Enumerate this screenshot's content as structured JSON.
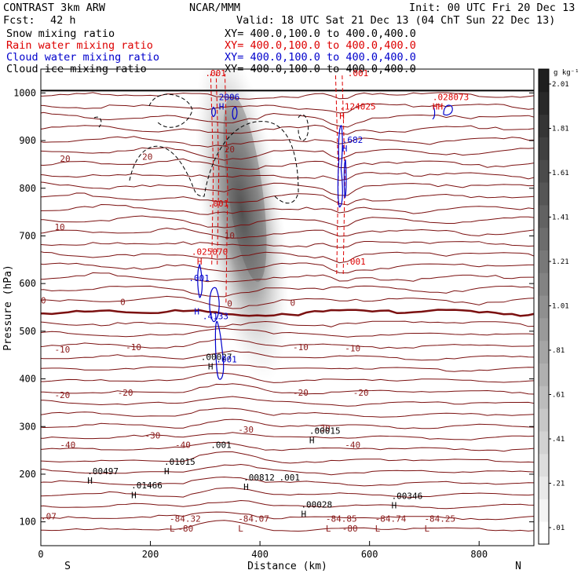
{
  "header": {
    "model": "CONTRAST  3km ARW",
    "org": "NCAR/MMM",
    "init": "Init: 00 UTC Fri 20 Dec 13",
    "fcst_label": "Fcst:",
    "fcst_value": "42 h",
    "valid": "Valid: 18 UTC Sat 21 Dec 13 (04 ChT Sun 22 Dec 13)"
  },
  "fields": [
    {
      "name": "Snow mixing ratio",
      "xy": "XY= 400.0,100.0 to 400.0,400.0",
      "color": "#000000"
    },
    {
      "name": "Rain water mixing ratio",
      "xy": "XY= 400.0,100.0 to 400.0,400.0",
      "color": "#dd0000"
    },
    {
      "name": "Cloud water mixing ratio",
      "xy": "XY= 400.0,100.0 to 400.0,400.0",
      "color": "#0000cc"
    },
    {
      "name": "Cloud ice mixing ratio",
      "xy": "XY= 400.0,100.0 to 400.0,400.0",
      "color": "#000000"
    }
  ],
  "chart_data": {
    "type": "cross-section",
    "xlabel": "Distance (km)",
    "ylabel": "Pressure (hPa)",
    "xlim": [
      0,
      900
    ],
    "ylim": [
      1050,
      50
    ],
    "x_ticks": [
      0,
      200,
      400,
      600,
      800
    ],
    "y_ticks": [
      100,
      200,
      300,
      400,
      500,
      600,
      700,
      800,
      900,
      1000
    ],
    "x_end_labels": {
      "left": "S",
      "right": "N"
    },
    "colorbar": {
      "unit": "g kg⁻¹",
      "ticks": [
        ".01",
        ".21",
        ".41",
        ".61",
        ".81",
        "1.01",
        "1.21",
        "1.41",
        "1.61",
        "1.81",
        "2.01"
      ]
    },
    "temperature_labels": [
      {
        "x": 35,
        "p": 255,
        "text": "-40"
      },
      {
        "x": 555,
        "p": 255,
        "text": "-40"
      },
      {
        "x": 245,
        "p": 255,
        "text": "-40"
      },
      {
        "x": 190,
        "p": 275,
        "text": "-30"
      },
      {
        "x": 500,
        "p": 290,
        "text": "-30"
      },
      {
        "x": 360,
        "p": 287,
        "text": "-30"
      },
      {
        "x": 25,
        "p": 360,
        "text": "-20"
      },
      {
        "x": 140,
        "p": 365,
        "text": "-20"
      },
      {
        "x": 460,
        "p": 365,
        "text": "-20"
      },
      {
        "x": 570,
        "p": 365,
        "text": "-20"
      },
      {
        "x": 25,
        "p": 455,
        "text": "-10"
      },
      {
        "x": 155,
        "p": 460,
        "text": "-10"
      },
      {
        "x": 460,
        "p": 460,
        "text": "-10"
      },
      {
        "x": 555,
        "p": 458,
        "text": "-10"
      },
      {
        "x": 0,
        "p": 558,
        "text": "0"
      },
      {
        "x": 145,
        "p": 555,
        "text": "0"
      },
      {
        "x": 340,
        "p": 552,
        "text": "0"
      },
      {
        "x": 455,
        "p": 553,
        "text": "0"
      },
      {
        "x": 25,
        "p": 712,
        "text": "10"
      },
      {
        "x": 335,
        "p": 694,
        "text": "10"
      },
      {
        "x": 35,
        "p": 856,
        "text": "20"
      },
      {
        "x": 185,
        "p": 860,
        "text": "20"
      },
      {
        "x": 335,
        "p": 875,
        "text": "20"
      },
      {
        "x": 250,
        "p": 80,
        "text": "-80"
      },
      {
        "x": 550,
        "p": 80,
        "text": "-80"
      }
    ],
    "extrema_labels": [
      {
        "x": 235,
        "p": 80,
        "text": "L",
        "color": "#8b1a1a"
      },
      {
        "x": 235,
        "p": 100,
        "text": "-84.32",
        "color": "#8b1a1a"
      },
      {
        "x": 0,
        "p": 105,
        "text": ".07",
        "color": "#8b1a1a"
      },
      {
        "x": 360,
        "p": 80,
        "text": "L",
        "color": "#8b1a1a"
      },
      {
        "x": 360,
        "p": 100,
        "text": "-84.07",
        "color": "#8b1a1a"
      },
      {
        "x": 520,
        "p": 80,
        "text": "L",
        "color": "#8b1a1a"
      },
      {
        "x": 520,
        "p": 100,
        "text": "-84.85",
        "color": "#8b1a1a"
      },
      {
        "x": 610,
        "p": 80,
        "text": "L",
        "color": "#8b1a1a"
      },
      {
        "x": 610,
        "p": 100,
        "text": "-84.74",
        "color": "#8b1a1a"
      },
      {
        "x": 700,
        "p": 80,
        "text": "L",
        "color": "#8b1a1a"
      },
      {
        "x": 700,
        "p": 100,
        "text": "-84.25",
        "color": "#8b1a1a"
      },
      {
        "x": 475,
        "p": 110,
        "text": "H",
        "color": "#000000"
      },
      {
        "x": 475,
        "p": 130,
        "text": ".00028",
        "color": "#000000"
      },
      {
        "x": 165,
        "p": 150,
        "text": "H",
        "color": "#000000"
      },
      {
        "x": 165,
        "p": 170,
        "text": ".01466",
        "color": "#000000"
      },
      {
        "x": 370,
        "p": 167,
        "text": "H",
        "color": "#000000"
      },
      {
        "x": 370,
        "p": 187,
        "text": ".00812",
        "color": "#000000"
      },
      {
        "x": 435,
        "p": 187,
        "text": ".001",
        "color": "#000000"
      },
      {
        "x": 640,
        "p": 128,
        "text": "H",
        "color": "#000000"
      },
      {
        "x": 640,
        "p": 148,
        "text": ".00346",
        "color": "#000000"
      },
      {
        "x": 85,
        "p": 180,
        "text": "H",
        "color": "#000000"
      },
      {
        "x": 85,
        "p": 200,
        "text": ".00497",
        "color": "#000000"
      },
      {
        "x": 225,
        "p": 200,
        "text": "H",
        "color": "#000000"
      },
      {
        "x": 225,
        "p": 220,
        "text": ".01015",
        "color": "#000000"
      },
      {
        "x": 310,
        "p": 255,
        "text": ".001",
        "color": "#000000"
      },
      {
        "x": 490,
        "p": 265,
        "text": "H",
        "color": "#000000"
      },
      {
        "x": 490,
        "p": 285,
        "text": ".00015",
        "color": "#000000"
      },
      {
        "x": 305,
        "p": 420,
        "text": "H",
        "color": "#000000"
      },
      {
        "x": 292,
        "p": 440,
        "text": ".00027",
        "color": "#000000"
      },
      {
        "x": 320,
        "p": 435,
        "text": ".001",
        "color": "#0000cc"
      },
      {
        "x": 295,
        "p": 525,
        "text": ".4133",
        "color": "#0000cc"
      },
      {
        "x": 280,
        "p": 535,
        "text": "H",
        "color": "#0000cc"
      },
      {
        "x": 270,
        "p": 605,
        "text": ".001",
        "color": "#0000cc"
      },
      {
        "x": 285,
        "p": 640,
        "text": "H",
        "color": "#dd0000"
      },
      {
        "x": 275,
        "p": 660,
        "text": ".025070",
        "color": "#dd0000"
      },
      {
        "x": 305,
        "p": 762,
        "text": ".001",
        "color": "#dd0000"
      },
      {
        "x": 555,
        "p": 640,
        "text": ".001",
        "color": "#dd0000"
      },
      {
        "x": 550,
        "p": 877,
        "text": "H",
        "color": "#0000cc"
      },
      {
        "x": 550,
        "p": 895,
        "text": ".682",
        "color": "#0000cc"
      },
      {
        "x": 325,
        "p": 965,
        "text": "H",
        "color": "#0000cc"
      },
      {
        "x": 325,
        "p": 985,
        "text": "2006",
        "color": "#0000cc"
      },
      {
        "x": 545,
        "p": 945,
        "text": "H",
        "color": "#dd0000"
      },
      {
        "x": 545,
        "p": 965,
        "text": ".124025",
        "color": "#dd0000"
      },
      {
        "x": 715,
        "p": 965,
        "text": "HH",
        "color": "#dd0000"
      },
      {
        "x": 715,
        "p": 985,
        "text": ".028073",
        "color": "#dd0000"
      },
      {
        "x": 300,
        "p": 1035,
        "text": ".001",
        "color": "#dd0000"
      },
      {
        "x": 560,
        "p": 1035,
        "text": ".001",
        "color": "#dd0000"
      }
    ]
  }
}
